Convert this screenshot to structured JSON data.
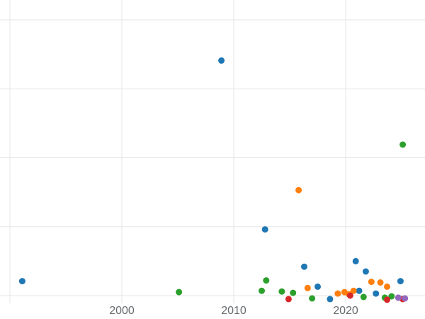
{
  "style": {
    "background": "#ffffff",
    "grid_color": "#e5e5e5",
    "tick_label_color": "#666b6f",
    "tick_font_size": 16
  },
  "chart_data": {
    "type": "scatter",
    "title": "",
    "xlabel": "",
    "ylabel": "",
    "grid": true,
    "legend": "none",
    "y_axis_labels_visible": false,
    "x_ticks": [
      {
        "year": 2000,
        "label": "2000"
      },
      {
        "year": 2010,
        "label": "2010"
      },
      {
        "year": 2020,
        "label": "2020"
      }
    ],
    "x_gridline_years": [
      1990,
      2000,
      2010,
      2020
    ],
    "y_gridline_units": [
      0,
      1,
      2,
      3,
      4
    ],
    "series": [
      {
        "name": "series-blue",
        "color": "#1f77b4",
        "points": [
          [
            1991.1,
            0.21
          ],
          [
            2008.9,
            3.41
          ],
          [
            2012.8,
            0.96
          ],
          [
            2016.3,
            0.42
          ],
          [
            2017.5,
            0.13
          ],
          [
            2018.6,
            -0.05
          ],
          [
            2020.9,
            0.5
          ],
          [
            2021.2,
            0.07
          ],
          [
            2021.8,
            0.35
          ],
          [
            2022.7,
            0.03
          ],
          [
            2024.9,
            0.21
          ]
        ]
      },
      {
        "name": "series-orange",
        "color": "#ff7f0e",
        "points": [
          [
            2015.8,
            1.53
          ],
          [
            2016.6,
            0.11
          ],
          [
            2019.3,
            0.03
          ],
          [
            2019.9,
            0.05
          ],
          [
            2020.3,
            0.02
          ],
          [
            2020.7,
            0.07
          ],
          [
            2022.3,
            0.2
          ],
          [
            2023.1,
            0.19
          ],
          [
            2023.7,
            0.13
          ]
        ]
      },
      {
        "name": "series-green",
        "color": "#2ca02c",
        "points": [
          [
            2005.1,
            0.05
          ],
          [
            2012.5,
            0.07
          ],
          [
            2012.9,
            0.22
          ],
          [
            2014.3,
            0.06
          ],
          [
            2015.3,
            0.04
          ],
          [
            2017.0,
            -0.04
          ],
          [
            2021.6,
            -0.02
          ],
          [
            2023.5,
            -0.03
          ],
          [
            2024.1,
            -0.01
          ],
          [
            2025.1,
            2.19
          ]
        ]
      },
      {
        "name": "series-red",
        "color": "#d62728",
        "points": [
          [
            2014.9,
            -0.05
          ],
          [
            2020.4,
            0.0
          ],
          [
            2023.7,
            -0.06
          ],
          [
            2025.1,
            -0.05
          ]
        ]
      },
      {
        "name": "series-purple",
        "color": "#9467bd",
        "points": [
          [
            2024.7,
            -0.03
          ],
          [
            2025.3,
            -0.04
          ]
        ]
      }
    ]
  }
}
